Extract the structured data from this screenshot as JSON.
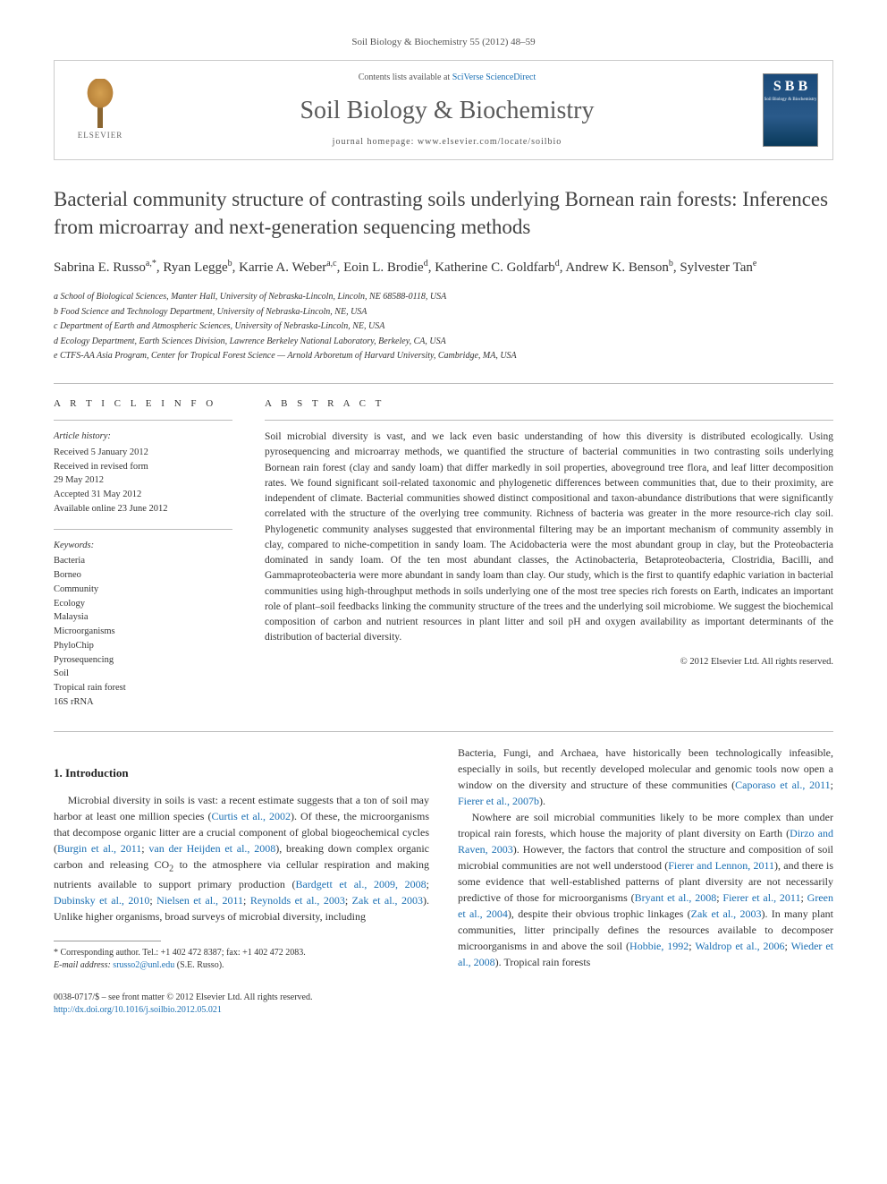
{
  "journal_ref": "Soil Biology & Biochemistry 55 (2012) 48–59",
  "header": {
    "publisher": "ELSEVIER",
    "contents_prefix": "Contents lists available at ",
    "contents_link": "SciVerse ScienceDirect",
    "journal_name": "Soil Biology & Biochemistry",
    "homepage_prefix": "journal homepage: ",
    "homepage_url": "www.elsevier.com/locate/soilbio",
    "cover_sb": "S B B",
    "cover_label": "Soil Biology & Biochemistry"
  },
  "title": "Bacterial community structure of contrasting soils underlying Bornean rain forests: Inferences from microarray and next-generation sequencing methods",
  "authors_html": "Sabrina E. Russo<sup>a,*</sup>, Ryan Legge<sup>b</sup>, Karrie A. Weber<sup>a,c</sup>, Eoin L. Brodie<sup>d</sup>, Katherine C. Goldfarb<sup>d</sup>, Andrew K. Benson<sup>b</sup>, Sylvester Tan<sup>e</sup>",
  "affiliations": [
    "a School of Biological Sciences, Manter Hall, University of Nebraska-Lincoln, Lincoln, NE 68588-0118, USA",
    "b Food Science and Technology Department, University of Nebraska-Lincoln, NE, USA",
    "c Department of Earth and Atmospheric Sciences, University of Nebraska-Lincoln, NE, USA",
    "d Ecology Department, Earth Sciences Division, Lawrence Berkeley National Laboratory, Berkeley, CA, USA",
    "e CTFS-AA Asia Program, Center for Tropical Forest Science — Arnold Arboretum of Harvard University, Cambridge, MA, USA"
  ],
  "article_info": {
    "label": "A R T I C L E   I N F O",
    "history_heading": "Article history:",
    "history": [
      "Received 5 January 2012",
      "Received in revised form",
      "29 May 2012",
      "Accepted 31 May 2012",
      "Available online 23 June 2012"
    ],
    "keywords_heading": "Keywords:",
    "keywords": [
      "Bacteria",
      "Borneo",
      "Community",
      "Ecology",
      "Malaysia",
      "Microorganisms",
      "PhyloChip",
      "Pyrosequencing",
      "Soil",
      "Tropical rain forest",
      "16S rRNA"
    ]
  },
  "abstract": {
    "label": "A B S T R A C T",
    "body": "Soil microbial diversity is vast, and we lack even basic understanding of how this diversity is distributed ecologically. Using pyrosequencing and microarray methods, we quantified the structure of bacterial communities in two contrasting soils underlying Bornean rain forest (clay and sandy loam) that differ markedly in soil properties, aboveground tree flora, and leaf litter decomposition rates. We found significant soil-related taxonomic and phylogenetic differences between communities that, due to their proximity, are independent of climate. Bacterial communities showed distinct compositional and taxon-abundance distributions that were significantly correlated with the structure of the overlying tree community. Richness of bacteria was greater in the more resource-rich clay soil. Phylogenetic community analyses suggested that environmental filtering may be an important mechanism of community assembly in clay, compared to niche-competition in sandy loam. The Acidobacteria were the most abundant group in clay, but the Proteobacteria dominated in sandy loam. Of the ten most abundant classes, the Actinobacteria, Betaproteobacteria, Clostridia, Bacilli, and Gammaproteobacteria were more abundant in sandy loam than clay. Our study, which is the first to quantify edaphic variation in bacterial communities using high-throughput methods in soils underlying one of the most tree species rich forests on Earth, indicates an important role of plant–soil feedbacks linking the community structure of the trees and the underlying soil microbiome. We suggest the biochemical composition of carbon and nutrient resources in plant litter and soil pH and oxygen availability as important determinants of the distribution of bacterial diversity.",
    "copyright": "© 2012 Elsevier Ltd. All rights reserved."
  },
  "intro": {
    "heading": "1. Introduction",
    "para1_html": "Microbial diversity in soils is vast: a recent estimate suggests that a ton of soil may harbor at least one million species (<a href='#'>Curtis et al., 2002</a>). Of these, the microorganisms that decompose organic litter are a crucial component of global biogeochemical cycles (<a href='#'>Burgin et al., 2011</a>; <a href='#'>van der Heijden et al., 2008</a>), breaking down complex organic carbon and releasing CO<sub>2</sub> to the atmosphere via cellular respiration and making nutrients available to support primary production (<a href='#'>Bardgett et al., 2009, 2008</a>; <a href='#'>Dubinsky et al., 2010</a>; <a href='#'>Nielsen et al., 2011</a>; <a href='#'>Reynolds et al., 2003</a>; <a href='#'>Zak et al., 2003</a>). Unlike higher organisms, broad surveys of microbial diversity, including",
    "para2_html": "Bacteria, Fungi, and Archaea, have historically been technologically infeasible, especially in soils, but recently developed molecular and genomic tools now open a window on the diversity and structure of these communities (<a href='#'>Caporaso et al., 2011</a>; <a href='#'>Fierer et al., 2007b</a>).",
    "para3_html": "Nowhere are soil microbial communities likely to be more complex than under tropical rain forests, which house the majority of plant diversity on Earth (<a href='#'>Dirzo and Raven, 2003</a>). However, the factors that control the structure and composition of soil microbial communities are not well understood (<a href='#'>Fierer and Lennon, 2011</a>), and there is some evidence that well-established patterns of plant diversity are not necessarily predictive of those for microorganisms (<a href='#'>Bryant et al., 2008</a>; <a href='#'>Fierer et al., 2011</a>; <a href='#'>Green et al., 2004</a>), despite their obvious trophic linkages (<a href='#'>Zak et al., 2003</a>). In many plant communities, litter principally defines the resources available to decomposer microorganisms in and above the soil (<a href='#'>Hobbie, 1992</a>; <a href='#'>Waldrop et al., 2006</a>; <a href='#'>Wieder et al., 2008</a>). Tropical rain forests"
  },
  "footnote": {
    "corresponding": "* Corresponding author. Tel.: +1 402 472 8387; fax: +1 402 472 2083.",
    "email_label": "E-mail address: ",
    "email": "srusso2@unl.edu",
    "email_name": " (S.E. Russo)."
  },
  "bottom": {
    "issn": "0038-0717/$ – see front matter © 2012 Elsevier Ltd. All rights reserved.",
    "doi": "http://dx.doi.org/10.1016/j.soilbio.2012.05.021"
  },
  "colors": {
    "link": "#1a6fb3",
    "text": "#333333",
    "title": "#414141",
    "border": "#cccccc"
  }
}
